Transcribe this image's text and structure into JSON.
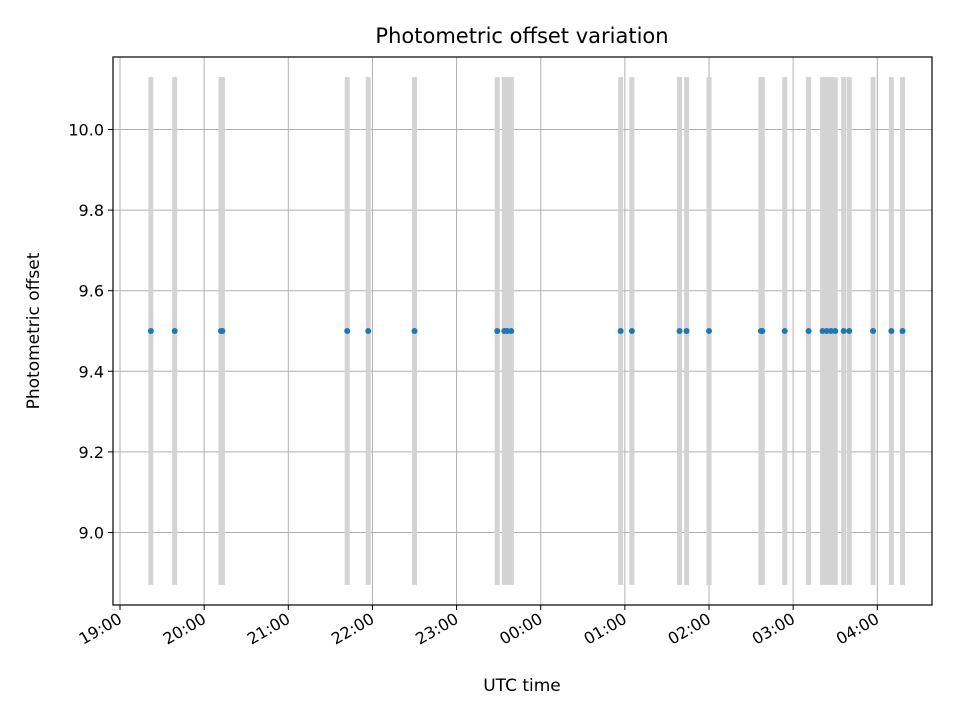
{
  "chart_data": {
    "type": "scatter",
    "title": "Photometric offset variation",
    "xlabel": "UTC time",
    "ylabel": "Photometric offset",
    "x_is_time": true,
    "xlim": [
      "18:55",
      "04:39"
    ],
    "ylim": [
      8.82,
      10.18
    ],
    "grid": true,
    "x_ticks": [
      "19:00",
      "20:00",
      "21:00",
      "22:00",
      "23:00",
      "00:00",
      "01:00",
      "02:00",
      "03:00",
      "04:00"
    ],
    "y_ticks": [
      9.0,
      9.2,
      9.4,
      9.6,
      9.8,
      10.0
    ],
    "y_tick_labels": [
      "9.0",
      "9.2",
      "9.4",
      "9.6",
      "9.8",
      "10.0"
    ],
    "marker_color": "#1f77b4",
    "bar_color": "#d3d3d3",
    "bar_range": [
      8.87,
      10.13
    ],
    "times": [
      "19:22",
      "19:39",
      "20:12",
      "20:13",
      "21:42",
      "21:57",
      "22:30",
      "23:29",
      "23:34",
      "23:36",
      "23:39",
      "00:57",
      "01:05",
      "01:39",
      "01:44",
      "02:00",
      "02:37",
      "02:38",
      "02:54",
      "03:11",
      "03:21",
      "03:24",
      "03:27",
      "03:30",
      "03:36",
      "03:40",
      "03:57",
      "04:10",
      "04:18"
    ],
    "values": [
      9.5,
      9.5,
      9.5,
      9.5,
      9.5,
      9.5,
      9.5,
      9.5,
      9.5,
      9.5,
      9.5,
      9.5,
      9.5,
      9.5,
      9.5,
      9.5,
      9.5,
      9.5,
      9.5,
      9.5,
      9.5,
      9.5,
      9.5,
      9.5,
      9.5,
      9.5,
      9.5,
      9.5,
      9.5
    ]
  }
}
